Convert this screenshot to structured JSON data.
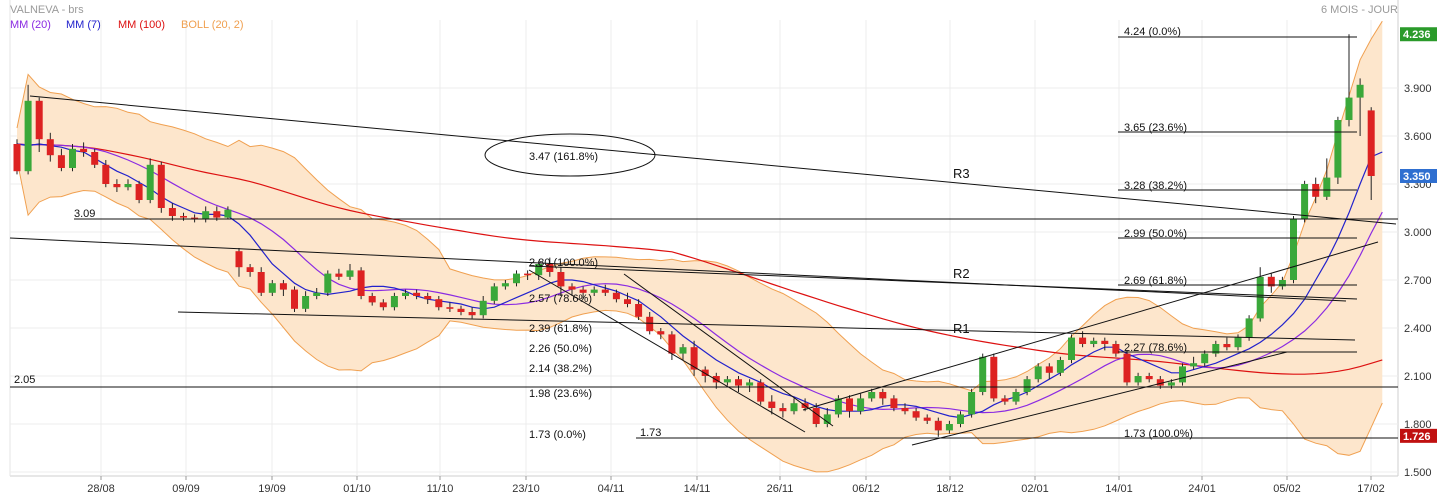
{
  "chart_data": {
    "type": "candlestick",
    "title": "VALNEVA - brs",
    "period_label": "6 MOIS - JOUR",
    "legend": [
      {
        "name": "MM (20)",
        "color": "#8b2be2"
      },
      {
        "name": "MM (7)",
        "color": "#2222cc"
      },
      {
        "name": "MM (100)",
        "color": "#dd1111"
      },
      {
        "name": "BOLL (20, 2)",
        "color": "#f0a050"
      }
    ],
    "colors": {
      "up": "#3aa83a",
      "down": "#dd2222",
      "band_fill": "#fde6cc",
      "band_line": "#f0a050",
      "current_badge": "#2f6fd0",
      "high_badge": "#2a9a2a",
      "low_badge": "#c01010"
    },
    "ylim": [
      1.48,
      4.3
    ],
    "y_ticks": [
      "1.500",
      "1.800",
      "2.100",
      "2.400",
      "2.700",
      "3.000",
      "3.300",
      "3.600",
      "3.900"
    ],
    "x_ticks": [
      "28/08",
      "09/09",
      "19/09",
      "01/10",
      "11/10",
      "23/10",
      "04/11",
      "14/11",
      "26/11",
      "06/12",
      "18/12",
      "02/01",
      "14/01",
      "24/01",
      "05/02",
      "17/02"
    ],
    "price_badges": [
      {
        "label": "4.236",
        "value": 4.236,
        "kind": "high"
      },
      {
        "label": "3.350",
        "value": 3.35,
        "kind": "current"
      },
      {
        "label": "1.726",
        "value": 1.726,
        "kind": "low"
      }
    ],
    "candles": [
      [
        3.55,
        3.38,
        3.58,
        3.36
      ],
      [
        3.38,
        3.82,
        3.92,
        3.36
      ],
      [
        3.82,
        3.58,
        3.84,
        3.5
      ],
      [
        3.58,
        3.48,
        3.62,
        3.44
      ],
      [
        3.48,
        3.4,
        3.52,
        3.38
      ],
      [
        3.4,
        3.52,
        3.55,
        3.38
      ],
      [
        3.52,
        3.5,
        3.56,
        3.47
      ],
      [
        3.5,
        3.42,
        3.52,
        3.4
      ],
      [
        3.42,
        3.3,
        3.45,
        3.28
      ],
      [
        3.3,
        3.28,
        3.33,
        3.25
      ],
      [
        3.28,
        3.3,
        3.33,
        3.26
      ],
      [
        3.3,
        3.2,
        3.32,
        3.18
      ],
      [
        3.2,
        3.42,
        3.46,
        3.18
      ],
      [
        3.42,
        3.15,
        3.44,
        3.12
      ],
      [
        3.15,
        3.1,
        3.18,
        3.07
      ],
      [
        3.1,
        3.09,
        3.12,
        3.07
      ],
      [
        3.09,
        3.08,
        3.11,
        3.06
      ],
      [
        3.08,
        3.13,
        3.16,
        3.06
      ],
      [
        3.13,
        3.09,
        3.16,
        3.07
      ],
      [
        3.09,
        3.14,
        3.16,
        3.08
      ],
      [
        2.88,
        2.78,
        2.9,
        2.72
      ],
      [
        2.78,
        2.75,
        2.8,
        2.72
      ],
      [
        2.75,
        2.62,
        2.78,
        2.6
      ],
      [
        2.62,
        2.68,
        2.7,
        2.6
      ],
      [
        2.68,
        2.64,
        2.7,
        2.6
      ],
      [
        2.64,
        2.52,
        2.66,
        2.5
      ],
      [
        2.52,
        2.6,
        2.63,
        2.5
      ],
      [
        2.6,
        2.62,
        2.65,
        2.58
      ],
      [
        2.62,
        2.74,
        2.76,
        2.6
      ],
      [
        2.74,
        2.72,
        2.77,
        2.7
      ],
      [
        2.72,
        2.76,
        2.8,
        2.7
      ],
      [
        2.76,
        2.6,
        2.78,
        2.58
      ],
      [
        2.6,
        2.56,
        2.62,
        2.54
      ],
      [
        2.56,
        2.53,
        2.58,
        2.51
      ],
      [
        2.53,
        2.6,
        2.62,
        2.51
      ],
      [
        2.6,
        2.62,
        2.64,
        2.58
      ],
      [
        2.62,
        2.6,
        2.64,
        2.58
      ],
      [
        2.6,
        2.58,
        2.62,
        2.55
      ],
      [
        2.58,
        2.53,
        2.6,
        2.51
      ],
      [
        2.53,
        2.52,
        2.56,
        2.5
      ],
      [
        2.52,
        2.5,
        2.54,
        2.48
      ],
      [
        2.5,
        2.48,
        2.53,
        2.46
      ],
      [
        2.48,
        2.57,
        2.6,
        2.46
      ],
      [
        2.57,
        2.66,
        2.68,
        2.55
      ],
      [
        2.66,
        2.68,
        2.7,
        2.64
      ],
      [
        2.68,
        2.74,
        2.76,
        2.66
      ],
      [
        2.74,
        2.73,
        2.76,
        2.7
      ],
      [
        2.73,
        2.8,
        2.82,
        2.7
      ],
      [
        2.8,
        2.75,
        2.84,
        2.72
      ],
      [
        2.75,
        2.66,
        2.78,
        2.6
      ],
      [
        2.66,
        2.64,
        2.68,
        2.6
      ],
      [
        2.64,
        2.62,
        2.66,
        2.58
      ],
      [
        2.62,
        2.64,
        2.66,
        2.6
      ],
      [
        2.64,
        2.62,
        2.67,
        2.6
      ],
      [
        2.62,
        2.58,
        2.64,
        2.56
      ],
      [
        2.58,
        2.55,
        2.62,
        2.53
      ],
      [
        2.55,
        2.47,
        2.58,
        2.45
      ],
      [
        2.47,
        2.38,
        2.5,
        2.36
      ],
      [
        2.38,
        2.36,
        2.4,
        2.33
      ],
      [
        2.36,
        2.24,
        2.38,
        2.2
      ],
      [
        2.24,
        2.28,
        2.3,
        2.2
      ],
      [
        2.28,
        2.14,
        2.32,
        2.1
      ],
      [
        2.14,
        2.1,
        2.16,
        2.06
      ],
      [
        2.1,
        2.06,
        2.12,
        2.02
      ],
      [
        2.06,
        2.08,
        2.1,
        2.04
      ],
      [
        2.08,
        2.04,
        2.1,
        2.0
      ],
      [
        2.04,
        2.06,
        2.08,
        2.0
      ],
      [
        2.06,
        1.94,
        2.08,
        1.92
      ],
      [
        1.94,
        1.9,
        1.98,
        1.86
      ],
      [
        1.9,
        1.88,
        1.93,
        1.84
      ],
      [
        1.88,
        1.93,
        1.96,
        1.86
      ],
      [
        1.93,
        1.9,
        1.96,
        1.88
      ],
      [
        1.9,
        1.8,
        1.93,
        1.78
      ],
      [
        1.8,
        1.86,
        1.9,
        1.78
      ],
      [
        1.86,
        1.96,
        1.98,
        1.84
      ],
      [
        1.96,
        1.88,
        1.98,
        1.84
      ],
      [
        1.88,
        1.96,
        1.99,
        1.86
      ],
      [
        1.96,
        2.0,
        2.02,
        1.94
      ],
      [
        2.0,
        1.96,
        2.02,
        1.92
      ],
      [
        1.96,
        1.9,
        1.98,
        1.88
      ],
      [
        1.9,
        1.88,
        1.93,
        1.86
      ],
      [
        1.88,
        1.84,
        1.9,
        1.82
      ],
      [
        1.84,
        1.82,
        1.86,
        1.8
      ],
      [
        1.82,
        1.76,
        1.84,
        1.72
      ],
      [
        1.76,
        1.8,
        1.82,
        1.74
      ],
      [
        1.8,
        1.86,
        1.88,
        1.78
      ],
      [
        1.86,
        2.0,
        2.02,
        1.84
      ],
      [
        2.0,
        2.22,
        2.24,
        1.98
      ],
      [
        2.22,
        1.96,
        2.24,
        1.94
      ],
      [
        1.96,
        1.94,
        1.98,
        1.92
      ],
      [
        1.94,
        2.0,
        2.02,
        1.92
      ],
      [
        2.0,
        2.08,
        2.1,
        1.98
      ],
      [
        2.08,
        2.16,
        2.18,
        2.06
      ],
      [
        2.16,
        2.12,
        2.18,
        2.08
      ],
      [
        2.12,
        2.2,
        2.22,
        2.1
      ],
      [
        2.2,
        2.34,
        2.36,
        2.18
      ],
      [
        2.34,
        2.3,
        2.38,
        2.28
      ],
      [
        2.3,
        2.32,
        2.34,
        2.28
      ],
      [
        2.32,
        2.3,
        2.34,
        2.26
      ],
      [
        2.3,
        2.24,
        2.32,
        2.22
      ],
      [
        2.24,
        2.06,
        2.26,
        2.04
      ],
      [
        2.06,
        2.1,
        2.12,
        2.04
      ],
      [
        2.1,
        2.08,
        2.12,
        2.06
      ],
      [
        2.08,
        2.04,
        2.1,
        2.02
      ],
      [
        2.04,
        2.06,
        2.08,
        2.02
      ],
      [
        2.06,
        2.16,
        2.18,
        2.04
      ],
      [
        2.16,
        2.18,
        2.22,
        2.14
      ],
      [
        2.18,
        2.24,
        2.26,
        2.16
      ],
      [
        2.24,
        2.3,
        2.32,
        2.22
      ],
      [
        2.3,
        2.28,
        2.34,
        2.26
      ],
      [
        2.28,
        2.34,
        2.36,
        2.26
      ],
      [
        2.34,
        2.46,
        2.48,
        2.32
      ],
      [
        2.46,
        2.72,
        2.78,
        2.44
      ],
      [
        2.72,
        2.66,
        2.74,
        2.62
      ],
      [
        2.66,
        2.7,
        2.72,
        2.64
      ],
      [
        2.7,
        3.08,
        3.1,
        2.68
      ],
      [
        3.08,
        3.3,
        3.32,
        3.06
      ],
      [
        3.3,
        3.22,
        3.34,
        3.18
      ],
      [
        3.22,
        3.34,
        3.46,
        3.2
      ],
      [
        3.34,
        3.7,
        3.72,
        3.3
      ],
      [
        3.7,
        3.84,
        4.236,
        3.66
      ],
      [
        3.84,
        3.92,
        3.96,
        3.6
      ],
      [
        3.76,
        3.35,
        3.78,
        3.2
      ]
    ],
    "ma7": [
      3.55,
      3.54,
      3.55,
      3.54,
      3.53,
      3.51,
      3.5,
      3.46,
      3.42,
      3.38,
      3.35,
      3.31,
      3.27,
      3.22,
      3.18,
      3.15,
      3.12,
      3.11,
      3.11,
      3.1,
      3.05,
      2.98,
      2.89,
      2.8,
      2.74,
      2.68,
      2.64,
      2.62,
      2.61,
      2.62,
      2.63,
      2.65,
      2.66,
      2.66,
      2.65,
      2.63,
      2.6,
      2.58,
      2.57,
      2.56,
      2.55,
      2.53,
      2.52,
      2.53,
      2.56,
      2.59,
      2.62,
      2.65,
      2.68,
      2.7,
      2.7,
      2.69,
      2.67,
      2.65,
      2.63,
      2.6,
      2.57,
      2.52,
      2.47,
      2.41,
      2.35,
      2.3,
      2.25,
      2.2,
      2.16,
      2.12,
      2.09,
      2.06,
      2.02,
      1.99,
      1.97,
      1.94,
      1.91,
      1.89,
      1.88,
      1.88,
      1.88,
      1.89,
      1.91,
      1.92,
      1.92,
      1.91,
      1.89,
      1.87,
      1.85,
      1.84,
      1.86,
      1.88,
      1.92,
      1.95,
      1.97,
      2.0,
      2.04,
      2.08,
      2.12,
      2.17,
      2.21,
      2.25,
      2.28,
      2.28,
      2.24,
      2.21,
      2.18,
      2.15,
      2.12,
      2.12,
      2.14,
      2.16,
      2.18,
      2.21,
      2.24,
      2.27,
      2.31,
      2.36,
      2.42,
      2.49,
      2.58,
      2.7,
      2.82,
      2.96,
      3.12,
      3.3,
      3.47,
      3.5
    ]
  },
  "annotations": {
    "fib_upper": [
      "4.24  (0.0%)",
      "3.65  (23.6%)",
      "3.28  (38.2%)",
      "2.99  (50.0%)",
      "2.69  (61.8%)",
      "2.27  (78.6%)",
      "1.73  (100.0%)"
    ],
    "fib_middle": [
      "2.80  (100.0%)",
      "2.57  (78.6%)",
      "2.39  (61.8%)",
      "2.26  (50.0%)",
      "2.14  (38.2%)",
      "1.98  (23.6%)",
      "1.73  (0.0%)"
    ],
    "ext_label": "3.47  (161.8%)",
    "level_309": "3.09",
    "level_205": "2.05",
    "level_173": "1.73",
    "r1": "R1",
    "r2": "R2",
    "r3": "R3"
  }
}
